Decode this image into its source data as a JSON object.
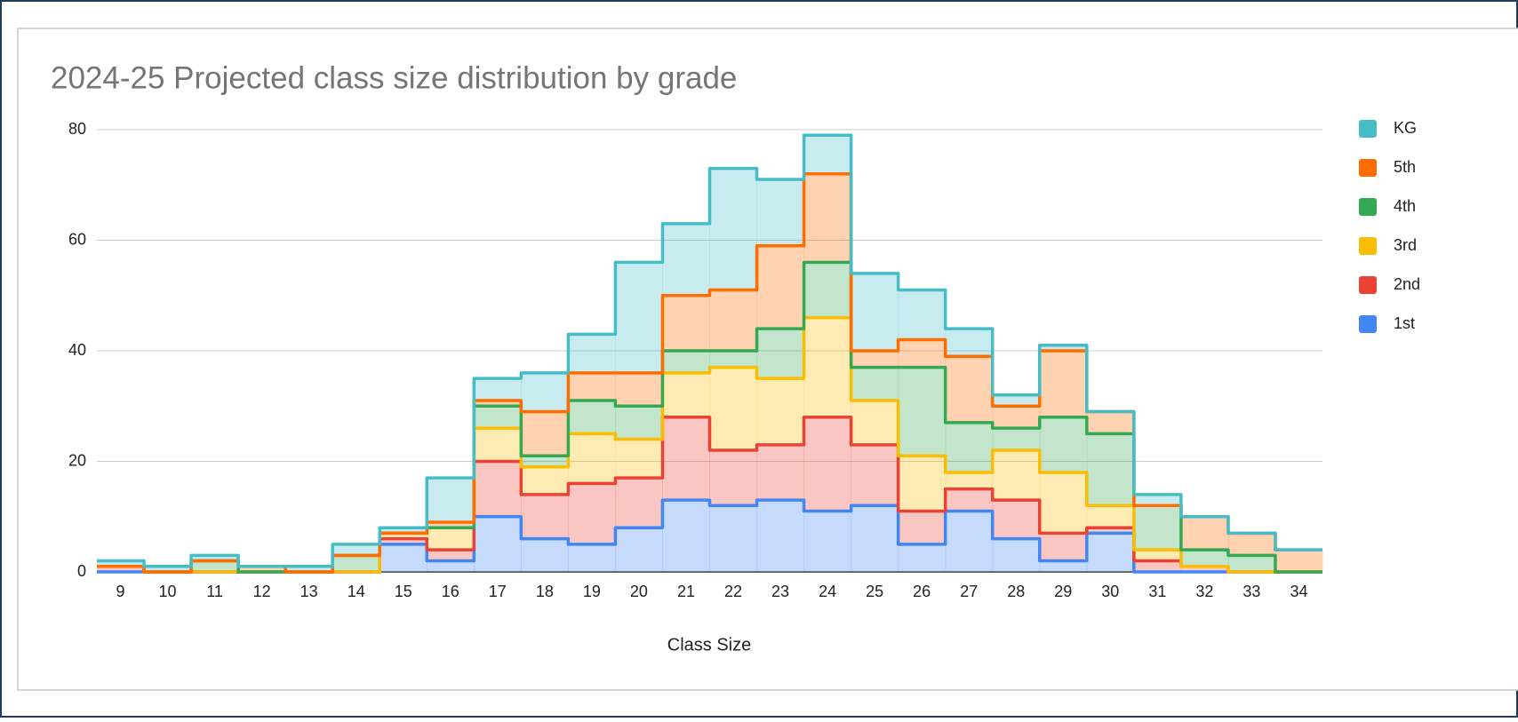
{
  "chart_data": {
    "type": "stepped-area-stacked",
    "title": "2024-25 Projected class size distribution by grade",
    "x_label": "Class Size",
    "categories": [
      "9",
      "10",
      "11",
      "12",
      "13",
      "14",
      "15",
      "16",
      "17",
      "18",
      "19",
      "20",
      "21",
      "22",
      "23",
      "24",
      "25",
      "26",
      "27",
      "28",
      "29",
      "30",
      "31",
      "32",
      "33",
      "34"
    ],
    "series": [
      {
        "name": "KG",
        "color": "#46bdc6",
        "values": [
          1,
          1,
          1,
          0,
          1,
          2,
          1,
          8,
          4,
          7,
          7,
          20,
          13,
          22,
          12,
          7,
          14,
          9,
          5,
          2,
          1,
          0,
          2,
          0,
          0,
          0
        ]
      },
      {
        "name": "5th",
        "color": "#ff6d01",
        "values": [
          0,
          0,
          0,
          1,
          0,
          0,
          0,
          1,
          1,
          8,
          5,
          6,
          10,
          11,
          15,
          16,
          3,
          5,
          12,
          4,
          12,
          4,
          0,
          6,
          4,
          4
        ]
      },
      {
        "name": "4th",
        "color": "#34a853",
        "values": [
          0,
          0,
          2,
          0,
          0,
          3,
          0,
          0,
          4,
          2,
          6,
          6,
          4,
          3,
          9,
          10,
          6,
          16,
          9,
          4,
          10,
          13,
          8,
          3,
          3,
          0
        ]
      },
      {
        "name": "3rd",
        "color": "#fbbc04",
        "values": [
          0,
          0,
          0,
          0,
          0,
          0,
          1,
          4,
          6,
          5,
          9,
          7,
          8,
          15,
          12,
          18,
          8,
          10,
          3,
          9,
          11,
          4,
          2,
          0,
          0,
          0
        ]
      },
      {
        "name": "2nd",
        "color": "#ea4335",
        "values": [
          1,
          0,
          0,
          0,
          0,
          0,
          1,
          2,
          10,
          8,
          11,
          9,
          15,
          10,
          10,
          17,
          11,
          6,
          4,
          7,
          5,
          1,
          2,
          1,
          0,
          0
        ]
      },
      {
        "name": "1st",
        "color": "#4285f4",
        "values": [
          0,
          0,
          0,
          0,
          0,
          0,
          5,
          2,
          10,
          6,
          5,
          8,
          13,
          12,
          13,
          11,
          12,
          5,
          11,
          6,
          2,
          7,
          0,
          0,
          0,
          0
        ]
      }
    ],
    "ylim": [
      0,
      80
    ],
    "yticks": [
      0,
      20,
      40,
      60,
      80
    ],
    "grid": true,
    "stacked": true,
    "legend": "right"
  }
}
